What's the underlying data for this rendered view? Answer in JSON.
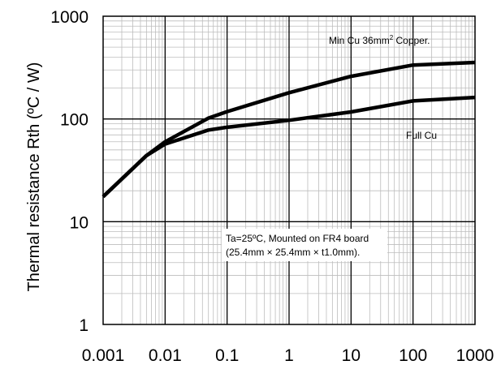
{
  "chart_data": {
    "type": "line",
    "title": "",
    "xlabel": "",
    "ylabel": "Thermal resistance Rth (ºC / W)",
    "x_scale": "log",
    "y_scale": "log",
    "xlim": [
      0.001,
      1000
    ],
    "ylim": [
      1,
      1000
    ],
    "grid": true,
    "x_ticks": [
      "0.001",
      "0.01",
      "0.1",
      "1",
      "10",
      "100",
      "1000"
    ],
    "y_ticks": [
      "1",
      "10",
      "100",
      "1000"
    ],
    "series": [
      {
        "label_parts": [
          "Min Cu 36mm",
          "2",
          " Copper."
        ],
        "x": [
          0.001,
          0.005,
          0.01,
          0.05,
          0.1,
          1,
          10,
          100,
          1000
        ],
        "y": [
          17.5,
          44,
          60,
          102,
          118,
          180,
          260,
          335,
          355
        ]
      },
      {
        "label": "Full Cu",
        "x": [
          0.001,
          0.005,
          0.01,
          0.05,
          0.1,
          1,
          10,
          100,
          1000
        ],
        "y": [
          17.5,
          44,
          57,
          78,
          83,
          97,
          117,
          150,
          162
        ]
      }
    ],
    "annotation": [
      "Ta=25ºC, Mounted on FR4 board",
      "(25.4mm × 25.4mm × t1.0mm)."
    ]
  }
}
